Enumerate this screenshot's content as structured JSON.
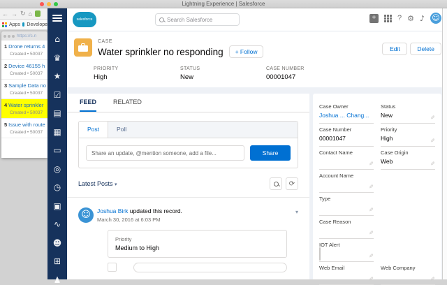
{
  "window": {
    "title": "Lightning Experience | Salesforce"
  },
  "browser": {
    "bookmark_apps": "Apps",
    "bookmark_developer": "Develope",
    "popup_url": "https://c.n"
  },
  "case_list": {
    "items": [
      {
        "num": "1",
        "title": "Drone returns 4",
        "meta": "Created • 50037"
      },
      {
        "num": "2",
        "title": "Device 46155 h",
        "meta": "Created • 50037"
      },
      {
        "num": "3",
        "title": "Sample Data no",
        "meta": "Created • 50037"
      },
      {
        "num": "4",
        "title": "Water sprinkler",
        "meta": "Created • 50037"
      },
      {
        "num": "5",
        "title": "Issue with route",
        "meta": "Created • 50037"
      }
    ]
  },
  "sidebar": {
    "icons": [
      {
        "name": "home",
        "glyph": "⌂"
      },
      {
        "name": "opportunities",
        "glyph": "♛"
      },
      {
        "name": "leads",
        "glyph": "★"
      },
      {
        "name": "tasks",
        "glyph": "☑"
      },
      {
        "name": "files",
        "glyph": "▤"
      },
      {
        "name": "accounts",
        "glyph": "▦"
      },
      {
        "name": "contacts",
        "glyph": "▭"
      },
      {
        "name": "campaigns",
        "glyph": "◎"
      },
      {
        "name": "dashboards",
        "glyph": "◷"
      },
      {
        "name": "cases",
        "glyph": "▣"
      },
      {
        "name": "analytics",
        "glyph": "∿"
      },
      {
        "name": "groups",
        "glyph": "☻"
      },
      {
        "name": "calendar",
        "glyph": "⊞"
      },
      {
        "name": "people",
        "glyph": "♟"
      }
    ]
  },
  "header": {
    "logo": "salesforce",
    "search_placeholder": "Search Salesforce",
    "gear_glyph": "⚙",
    "bell_glyph": "♪",
    "avatar_glyph": "☺",
    "help_glyph": "?"
  },
  "case": {
    "entity": "CASE",
    "title": "Water sprinkler no responding",
    "follow_label": "+ Follow",
    "edit_label": "Edit",
    "delete_label": "Delete",
    "highlights": [
      {
        "label": "PRIORITY",
        "value": "High"
      },
      {
        "label": "STATUS",
        "value": "New"
      },
      {
        "label": "CASE NUMBER",
        "value": "00001047"
      }
    ]
  },
  "tabs": {
    "feed": "FEED",
    "related": "RELATED"
  },
  "publisher": {
    "post_tab": "Post",
    "poll_tab": "Poll",
    "placeholder": "Share an update, @mention someone, add a file...",
    "share_label": "Share"
  },
  "feed": {
    "sort_label": "Latest Posts",
    "sort_caret": "▾",
    "refresh_glyph": "⟳",
    "item": {
      "actor": "Joshua Birk",
      "action": " updated this record.",
      "timestamp": "March 30, 2016 at 6:03 PM",
      "avatar_glyph": "☺",
      "menu_caret": "▾",
      "field_label": "Priority",
      "field_change": "Medium to High"
    }
  },
  "details": {
    "pencil_glyph": "✎",
    "left": [
      {
        "label": "Case Owner",
        "link1": "Joshua ...",
        "link2": "Chang..."
      },
      {
        "label": "Case Number",
        "value": "00001047"
      },
      {
        "label": "Contact Name",
        "value": ""
      },
      {
        "label": "Account Name",
        "value": ""
      },
      {
        "label": "Type",
        "value": ""
      },
      {
        "label": "Case Reason",
        "value": ""
      },
      {
        "label": "IOT Alert",
        "value": ""
      },
      {
        "label": "Web Email",
        "value": ""
      }
    ],
    "right": [
      {
        "label": "Status",
        "value": "New"
      },
      {
        "label": "Priority",
        "value": "High"
      },
      {
        "label": "Case Origin",
        "value": "Web"
      },
      {
        "label": "Web Company",
        "value": ""
      }
    ]
  },
  "colors": {
    "navy": "#16325C",
    "accent_blue": "#0070D2",
    "case_icon_yellow": "#F0B14A",
    "selection_highlight": "#FFFF00"
  }
}
